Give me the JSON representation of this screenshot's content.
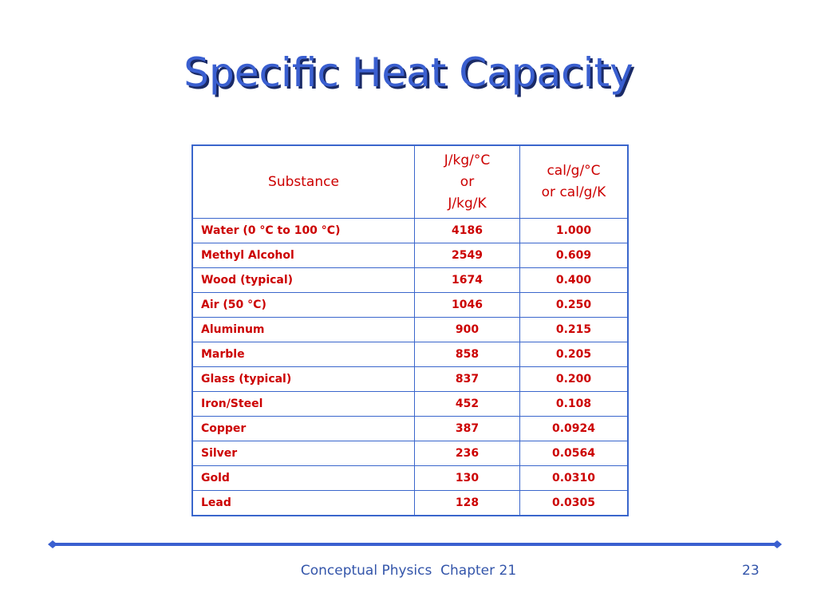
{
  "title": "Specific Heat Capacity",
  "table": {
    "header": [
      [
        "Substance"
      ],
      [
        "J/kg/°C",
        "or",
        "J/kg/K"
      ],
      [
        "cal/g/°C",
        "or cal/g/K"
      ]
    ],
    "rows": [
      [
        "Water (0 °C to 100 °C)",
        "4186",
        "1.000"
      ],
      [
        "Methyl Alcohol",
        "2549",
        "0.609"
      ],
      [
        "Wood (typical)",
        "1674",
        "0.400"
      ],
      [
        "Air (50 °C)",
        "1046",
        "0.250"
      ],
      [
        "Aluminum",
        "900",
        "0.215"
      ],
      [
        "Marble",
        "858",
        "0.205"
      ],
      [
        "Glass (typical)",
        "837",
        "0.200"
      ],
      [
        "Iron/Steel",
        "452",
        "0.108"
      ],
      [
        "Copper",
        "387",
        "0.0924"
      ],
      [
        "Silver",
        "236",
        "0.0564"
      ],
      [
        "Gold",
        "130",
        "0.0310"
      ],
      [
        "Lead",
        "128",
        "0.0305"
      ]
    ]
  },
  "footer": {
    "text": "Conceptual Physics  Chapter 21",
    "page": "23"
  }
}
